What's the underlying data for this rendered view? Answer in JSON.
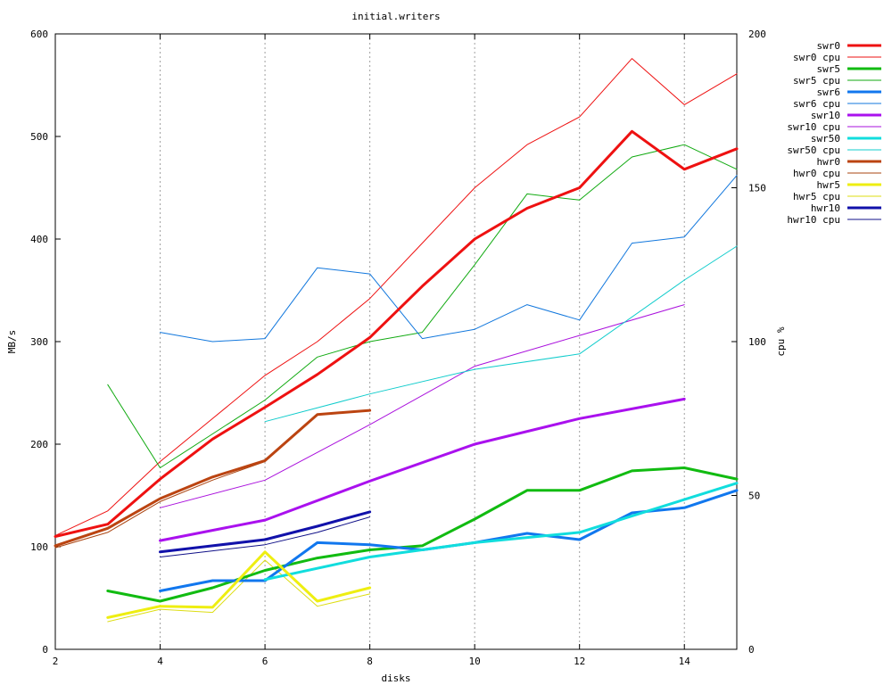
{
  "chart_data": {
    "type": "line",
    "title": "initial.writers",
    "xlabel": "disks",
    "ylabel": "MB/s",
    "y2label": "cpu %",
    "xlim": [
      2,
      15
    ],
    "ylim": [
      0,
      600
    ],
    "y2lim": [
      0,
      200
    ],
    "x_ticks": [
      2,
      4,
      6,
      8,
      10,
      12,
      14
    ],
    "y_ticks": [
      0,
      100,
      200,
      300,
      400,
      500,
      600
    ],
    "y2_ticks": [
      0,
      50,
      100,
      150,
      200
    ],
    "grid": "vertical dotted at x ticks",
    "legend_position": "right",
    "series": [
      {
        "name": "swr0",
        "axis": "y",
        "thick": true,
        "color": "#ee1111",
        "x": [
          2,
          3,
          4,
          5,
          6,
          7,
          8,
          9,
          10,
          11,
          12,
          13,
          14,
          15
        ],
        "y": [
          110,
          122,
          166,
          205,
          236,
          268,
          304,
          354,
          400,
          430,
          450,
          505,
          468,
          488
        ]
      },
      {
        "name": "swr0 cpu",
        "axis": "y2",
        "thick": false,
        "color": "#ee1111",
        "x": [
          2,
          3,
          4,
          5,
          6,
          7,
          8,
          9,
          10,
          11,
          12,
          13,
          14,
          15
        ],
        "y": [
          37,
          45,
          61,
          75,
          89,
          100,
          114,
          132,
          150,
          164,
          173,
          192,
          177,
          187
        ]
      },
      {
        "name": "swr5",
        "axis": "y",
        "thick": true,
        "color": "#11bb11",
        "x": [
          3,
          4,
          5,
          6,
          7,
          8,
          9,
          10,
          11,
          12,
          13,
          14,
          15
        ],
        "y": [
          57,
          47,
          60,
          77,
          89,
          97,
          101,
          127,
          155,
          155,
          174,
          177,
          166
        ]
      },
      {
        "name": "swr5 cpu",
        "axis": "y2",
        "thick": false,
        "color": "#11aa11",
        "x": [
          3,
          4,
          5,
          6,
          7,
          8,
          9,
          10,
          11,
          12,
          13,
          14,
          15
        ],
        "y": [
          86,
          59,
          70,
          81,
          95,
          100,
          103,
          125,
          148,
          146,
          160,
          164,
          156
        ]
      },
      {
        "name": "swr6",
        "axis": "y",
        "thick": true,
        "color": "#1177ee",
        "x": [
          4,
          5,
          6,
          7,
          8,
          9,
          10,
          11,
          12,
          13,
          14,
          15
        ],
        "y": [
          57,
          67,
          67,
          104,
          102,
          97,
          104,
          113,
          107,
          133,
          138,
          155
        ]
      },
      {
        "name": "swr6 cpu",
        "axis": "y2",
        "thick": false,
        "color": "#1177dd",
        "x": [
          4,
          5,
          6,
          7,
          8,
          9,
          10,
          11,
          12,
          13,
          14,
          15
        ],
        "y": [
          103,
          100,
          101,
          124,
          122,
          101,
          104,
          112,
          107,
          132,
          134,
          154
        ]
      },
      {
        "name": "swr10",
        "axis": "y",
        "thick": true,
        "color": "#aa11ee",
        "x": [
          4,
          6,
          8,
          10,
          12,
          14
        ],
        "y": [
          106,
          126,
          164,
          200,
          225,
          244
        ]
      },
      {
        "name": "swr10 cpu",
        "axis": "y2",
        "thick": false,
        "color": "#aa11dd",
        "x": [
          4,
          6,
          8,
          10,
          12,
          14
        ],
        "y": [
          46,
          55,
          73,
          92,
          102,
          112
        ]
      },
      {
        "name": "swr50",
        "axis": "y",
        "thick": true,
        "color": "#11dddd",
        "x": [
          6,
          8,
          10,
          12,
          15
        ],
        "y": [
          68,
          90,
          104,
          114,
          162
        ]
      },
      {
        "name": "swr50 cpu",
        "axis": "y2",
        "thick": false,
        "color": "#11cccc",
        "x": [
          6,
          8,
          10,
          12,
          14,
          15
        ],
        "y": [
          74,
          83,
          91,
          96,
          120,
          131
        ]
      },
      {
        "name": "hwr0",
        "axis": "y",
        "thick": true,
        "color": "#bb4411",
        "x": [
          2,
          3,
          4,
          5,
          6,
          7,
          8
        ],
        "y": [
          101,
          118,
          147,
          168,
          184,
          229,
          233
        ]
      },
      {
        "name": "hwr0 cpu",
        "axis": "y2",
        "thick": false,
        "color": "#aa4411",
        "x": [
          2,
          3,
          4,
          5,
          6,
          7
        ],
        "y": [
          33,
          38,
          48,
          55,
          61,
          76
        ]
      },
      {
        "name": "hwr5",
        "axis": "y",
        "thick": true,
        "color": "#eeee11",
        "x": [
          3,
          4,
          5,
          6,
          7,
          8
        ],
        "y": [
          31,
          42,
          41,
          95,
          47,
          60
        ]
      },
      {
        "name": "hwr5 cpu",
        "axis": "y2",
        "thick": false,
        "color": "#dddd11",
        "x": [
          3,
          4,
          5,
          6,
          7,
          8
        ],
        "y": [
          9,
          13,
          12,
          29,
          14,
          18
        ]
      },
      {
        "name": "hwr10",
        "axis": "y",
        "thick": true,
        "color": "#1111aa",
        "x": [
          4,
          5,
          6,
          7,
          8
        ],
        "y": [
          95,
          101,
          107,
          120,
          134
        ]
      },
      {
        "name": "hwr10 cpu",
        "axis": "y2",
        "thick": false,
        "color": "#111188",
        "x": [
          4,
          5,
          6,
          7,
          8
        ],
        "y": [
          30,
          32,
          34,
          38,
          43
        ]
      }
    ]
  }
}
